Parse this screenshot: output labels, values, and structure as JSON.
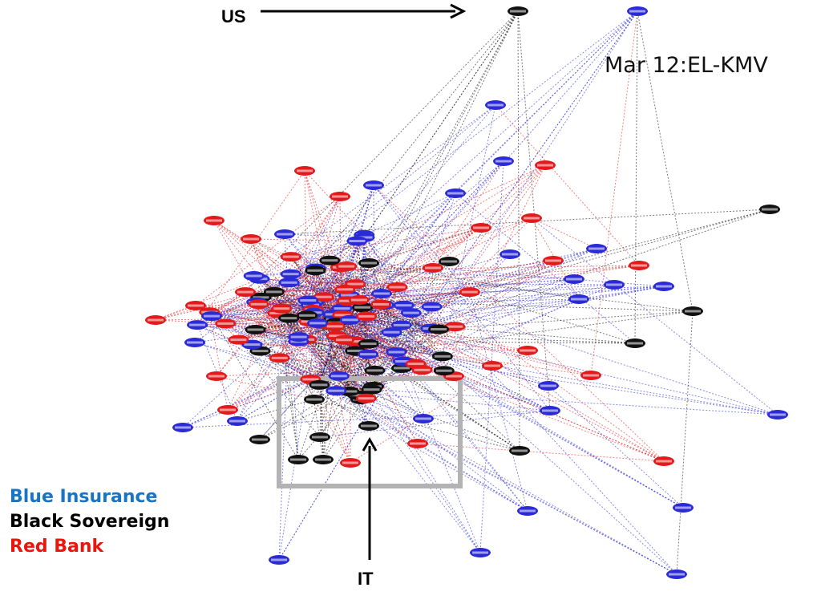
{
  "title": "Mar 12:EL-KMV",
  "annotations": {
    "us_label": "US",
    "it_label": "IT"
  },
  "legend": [
    {
      "text": "Blue Insurance",
      "color": "#1874c4"
    },
    {
      "text": "Black Sovereign",
      "color": "#000000"
    },
    {
      "text": "Red Bank",
      "color": "#e8160c"
    }
  ],
  "colors": {
    "insurance": "#2a2ad6",
    "sovereign": "#111111",
    "bank": "#e31a1c",
    "highlight_box": "#b3b3b3"
  }
}
